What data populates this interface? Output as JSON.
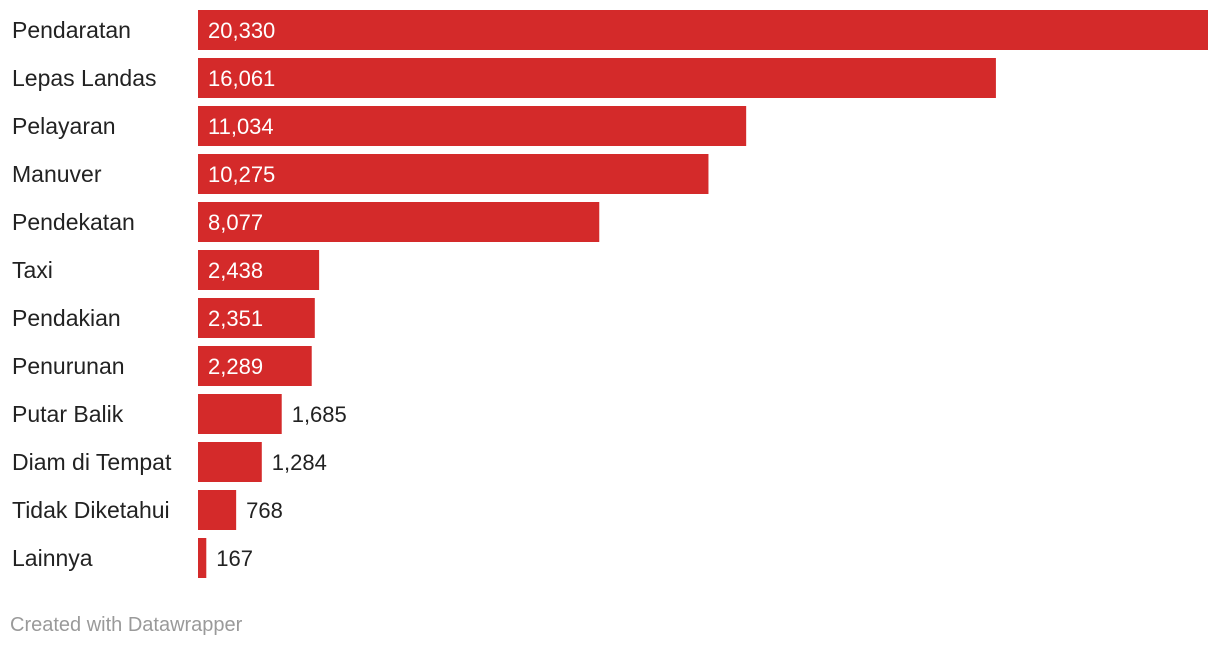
{
  "chart_data": {
    "type": "bar",
    "orientation": "horizontal",
    "categories": [
      "Pendaratan",
      "Lepas Landas",
      "Pelayaran",
      "Manuver",
      "Pendekatan",
      "Taxi",
      "Pendakian",
      "Penurunan",
      "Putar Balik",
      "Diam di Tempat",
      "Tidak Diketahui",
      "Lainnya"
    ],
    "values": [
      20330,
      16061,
      11034,
      10275,
      8077,
      2438,
      2351,
      2289,
      1685,
      1284,
      768,
      167
    ],
    "value_labels": [
      "20,330",
      "16,061",
      "11,034",
      "10,275",
      "8,077",
      "2,438",
      "2,351",
      "2,289",
      "1,685",
      "1,284",
      "768",
      "167"
    ],
    "xlim": [
      0,
      20330
    ],
    "grid": false,
    "bar_color": "#d42a2a",
    "label_color_inside": "#ffffff",
    "label_color_outside": "#222222"
  },
  "footer": {
    "credit": "Created with Datawrapper"
  }
}
